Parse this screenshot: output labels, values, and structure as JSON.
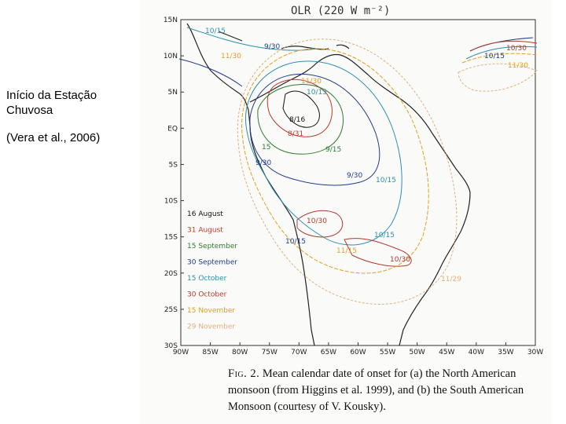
{
  "slide": {
    "title": "Início da Estação Chuvosa",
    "citation": "(Vera et al., 2006)"
  },
  "map": {
    "title": "OLR (220 W m⁻²)",
    "lat_labels": [
      "15N",
      "10N",
      "5N",
      "EQ",
      "5S",
      "10S",
      "15S",
      "20S",
      "25S",
      "30S"
    ],
    "lon_labels": [
      "90W",
      "85W",
      "80W",
      "75W",
      "70W",
      "65W",
      "60W",
      "55W",
      "50W",
      "45W",
      "40W",
      "35W",
      "30W"
    ],
    "legend": [
      {
        "label": "16 August",
        "color": "#111111"
      },
      {
        "label": "31 August",
        "color": "#c0392b"
      },
      {
        "label": "15 September",
        "color": "#2e7d32"
      },
      {
        "label": "30 September",
        "color": "#1f3a8a"
      },
      {
        "label": "15 October",
        "color": "#2e8fb0"
      },
      {
        "label": "30 October",
        "color": "#b03a2e"
      },
      {
        "label": "15 November",
        "color": "#e0a020"
      },
      {
        "label": "29 November",
        "color": "#e0b080"
      }
    ],
    "contour_labels": {
      "l1015_nw": "10/15",
      "l930_n": "9/30",
      "l1130_n": "11/30",
      "l1130_n2": "11/30",
      "l1015_n": "10/15",
      "l816": "8/16",
      "l831": "8/31",
      "l15": "15",
      "l915": "9/15",
      "l930_w": "9/30",
      "l930_c": "9/30",
      "l1015_c": "10/15",
      "l1030_e": "10/30",
      "l1015_ne": "10/15",
      "l1130_e": "11/30",
      "l1030_s": "10/30",
      "l1015_s": "10/15",
      "l1015_sw": "10/15",
      "l1130_sw": "11/15",
      "l1030_se": "10/30",
      "l1130_se": "11/29"
    }
  },
  "caption": {
    "fig_label": "Fig. 2.",
    "text": " Mean calendar date of onset for (a) the North American monsoon (from Higgins et al. 1999), and (b) the South American Monsoon (courtesy of V. Kousky)."
  }
}
